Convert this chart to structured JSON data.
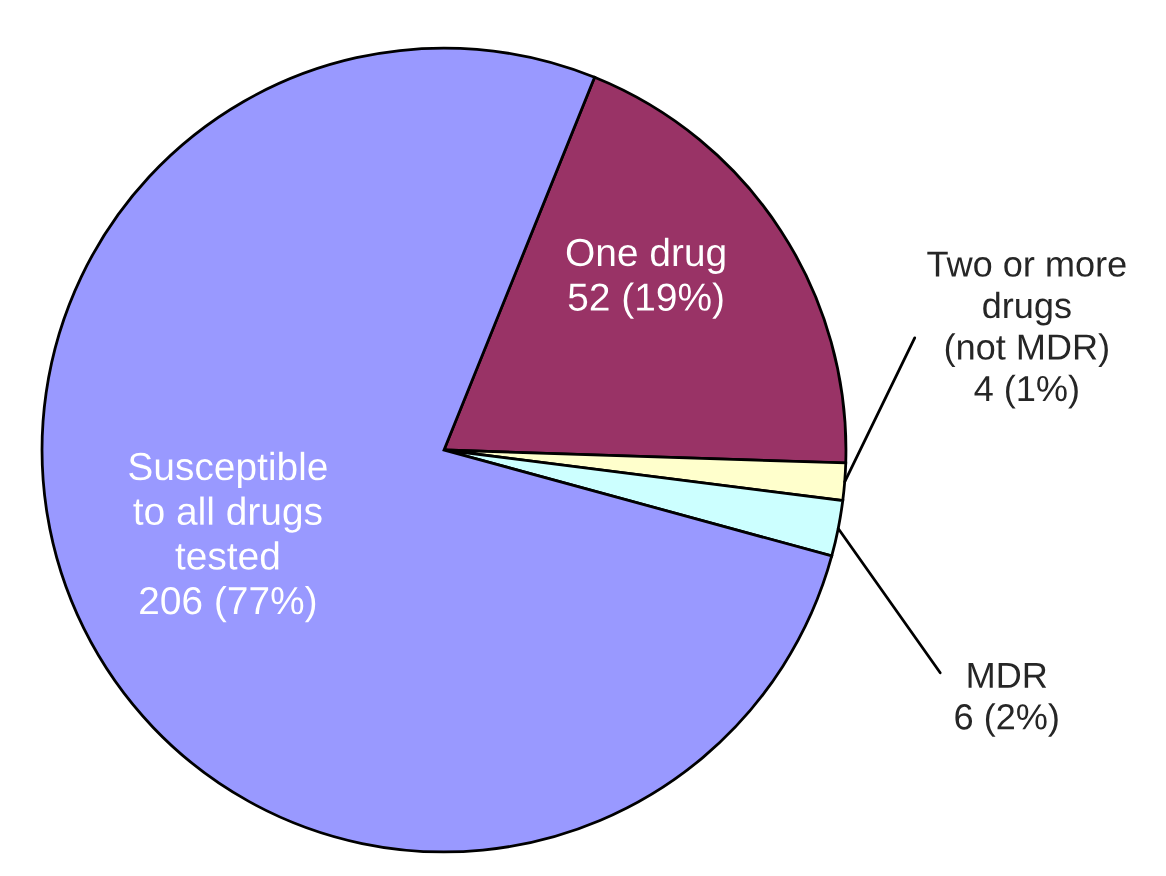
{
  "chart_data": {
    "type": "pie",
    "categories": [
      "One drug",
      "Two or more\ndrugs\n(not MDR)",
      "MDR",
      "Susceptible\nto all drugs\ntested"
    ],
    "values": [
      52,
      4,
      6,
      206
    ],
    "value_labels": [
      "52 (19%)",
      "4 (1%)",
      "6 (2%)",
      "206 (77%)"
    ],
    "colors": [
      "#993366",
      "#ffffcc",
      "#ccffff",
      "#9999ff"
    ],
    "legend": false
  }
}
